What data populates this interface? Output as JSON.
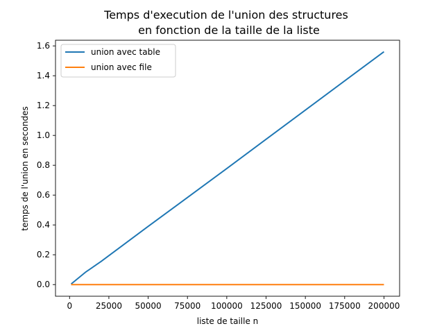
{
  "chart_data": {
    "type": "line",
    "title": [
      "Temps d'execution de l'union des structures",
      "en fonction de la taille de la liste"
    ],
    "xlabel": "liste de taille n",
    "ylabel": "temps de l'union en secondes",
    "xlim": [
      -8950,
      209950
    ],
    "ylim": [
      -0.078,
      1.638
    ],
    "xticks": [
      0,
      25000,
      50000,
      75000,
      100000,
      125000,
      150000,
      175000,
      200000
    ],
    "yticks": [
      0.0,
      0.2,
      0.4,
      0.6,
      0.8,
      1.0,
      1.2,
      1.4,
      1.6
    ],
    "xtick_labels": [
      "0",
      "25000",
      "50000",
      "75000",
      "100000",
      "125000",
      "150000",
      "175000",
      "200000"
    ],
    "ytick_labels": [
      "0.0",
      "0.2",
      "0.4",
      "0.6",
      "0.8",
      "1.0",
      "1.2",
      "1.4",
      "1.6"
    ],
    "legend_position": "upper-left",
    "grid": false,
    "series": [
      {
        "name": "union avec table",
        "color": "#1f77b4",
        "x": [
          1000,
          10000,
          20000,
          50000,
          100000,
          150000,
          200000
        ],
        "y": [
          0.004,
          0.082,
          0.155,
          0.39,
          0.778,
          1.17,
          1.561
        ]
      },
      {
        "name": "union avec file",
        "color": "#ff7f0e",
        "x": [
          1000,
          10000,
          20000,
          50000,
          100000,
          150000,
          200000
        ],
        "y": [
          0.0,
          0.0,
          0.0,
          0.0,
          0.0,
          0.0,
          0.0
        ]
      }
    ]
  }
}
